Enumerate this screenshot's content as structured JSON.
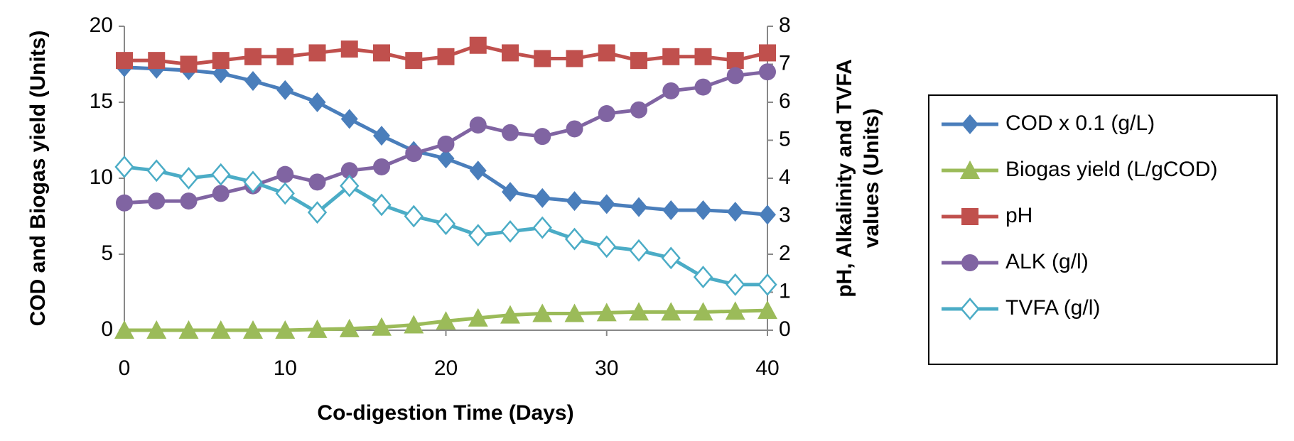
{
  "chart_data": {
    "type": "line",
    "x_label": "Co-digestion Time (Days)",
    "y_label": "COD and Biogas yield (Units)",
    "y2_label_lines": [
      "pH, Alkalinity and TVFA",
      "values (Units)"
    ],
    "x": [
      0,
      2,
      4,
      6,
      8,
      10,
      12,
      14,
      16,
      18,
      20,
      22,
      24,
      26,
      28,
      30,
      32,
      34,
      36,
      38,
      40
    ],
    "xlim": [
      0,
      40
    ],
    "xticks": [
      0,
      10,
      20,
      30,
      40
    ],
    "ylim": [
      0,
      20
    ],
    "yticks": [
      0,
      5,
      10,
      15,
      20
    ],
    "y2lim": [
      0,
      8
    ],
    "y2ticks": [
      0,
      1,
      2,
      3,
      4,
      5,
      6,
      7,
      8
    ],
    "legend": "right",
    "series": [
      {
        "name": "COD x 0.1 (g/L)",
        "color": "#4a7ebb",
        "marker": "diamond",
        "values": [
          17.3,
          17.2,
          17.1,
          16.9,
          16.4,
          15.8,
          15.0,
          13.9,
          12.8,
          11.8,
          11.3,
          10.5,
          9.1,
          8.7,
          8.5,
          8.3,
          8.1,
          7.9,
          7.9,
          7.8,
          7.6
        ]
      },
      {
        "name": "Biogas yield (L/gCOD)",
        "color": "#9bbb59",
        "marker": "triangle",
        "values": [
          0,
          0,
          0,
          0,
          0,
          0,
          0.05,
          0.1,
          0.2,
          0.35,
          0.6,
          0.8,
          1.0,
          1.1,
          1.1,
          1.15,
          1.2,
          1.2,
          1.2,
          1.25,
          1.3
        ]
      },
      {
        "name": "pH",
        "color": "#c0504d",
        "marker": "square",
        "axis": "y2",
        "values": [
          7.1,
          7.1,
          7.0,
          7.1,
          7.2,
          7.2,
          7.3,
          7.4,
          7.3,
          7.1,
          7.2,
          7.5,
          7.3,
          7.15,
          7.15,
          7.3,
          7.1,
          7.2,
          7.2,
          7.1,
          7.3
        ]
      },
      {
        "name": "ALK (g/l)",
        "color": "#8064a2",
        "marker": "circle",
        "axis": "y2",
        "values": [
          3.35,
          3.4,
          3.4,
          3.6,
          3.8,
          4.1,
          3.9,
          4.2,
          4.3,
          4.65,
          4.9,
          5.4,
          5.2,
          5.1,
          5.3,
          5.7,
          5.8,
          6.3,
          6.4,
          6.7,
          6.8
        ]
      },
      {
        "name": "TVFA (g/l)",
        "color": "#4bacc6",
        "marker": "hollow-diamond",
        "axis": "y2",
        "values": [
          4.3,
          4.2,
          4.0,
          4.1,
          3.9,
          3.6,
          3.1,
          3.8,
          3.3,
          3.0,
          2.8,
          2.5,
          2.6,
          2.7,
          2.4,
          2.2,
          2.1,
          1.9,
          1.4,
          1.2,
          1.2
        ]
      }
    ]
  }
}
